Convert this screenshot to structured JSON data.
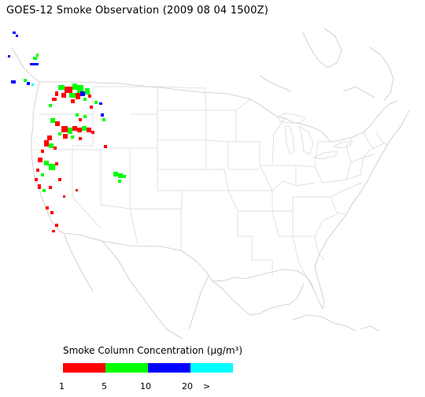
{
  "title": "GOES-12 Smoke Observation (2009 08 04  1500Z)",
  "legend": {
    "title": "Smoke Column Concentration (μg/m³)",
    "bins": [
      {
        "label": "1",
        "color": "#ff0000"
      },
      {
        "label": "5",
        "color": "#00ff00"
      },
      {
        "label": "10",
        "color": "#0000ff"
      },
      {
        "label": "20",
        "color": "#00ffff"
      }
    ],
    "overflow_label": ">"
  },
  "colors": {
    "background": "#ffffff",
    "boundaries": "#c8c8c8"
  }
}
